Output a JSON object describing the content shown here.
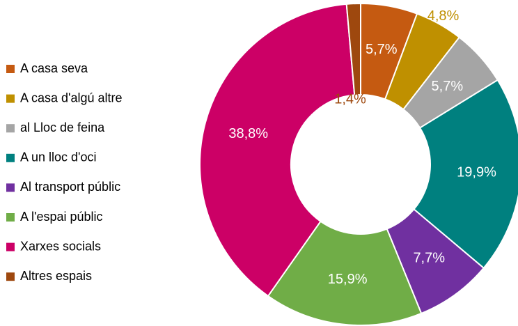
{
  "chart_data": {
    "type": "donut",
    "categories": [
      "A casa seva",
      "A casa d'algú altre",
      "al Lloc de feina",
      "A un lloc d'oci",
      "Al transport públic",
      "A l'espai públic",
      "Xarxes socials",
      "Altres espais"
    ],
    "values": [
      5.7,
      4.8,
      5.7,
      19.9,
      7.7,
      15.9,
      38.8,
      1.4
    ],
    "value_labels": [
      "5,7%",
      "4,8%",
      "5,7%",
      "19,9%",
      "7,7%",
      "15,9%",
      "38,8%",
      "1,4%"
    ],
    "colors": [
      "#c55a11",
      "#bf9000",
      "#a5a5a5",
      "#00807f",
      "#7030a0",
      "#70ad47",
      "#cc0066",
      "#9e480e"
    ],
    "legend": "left"
  }
}
